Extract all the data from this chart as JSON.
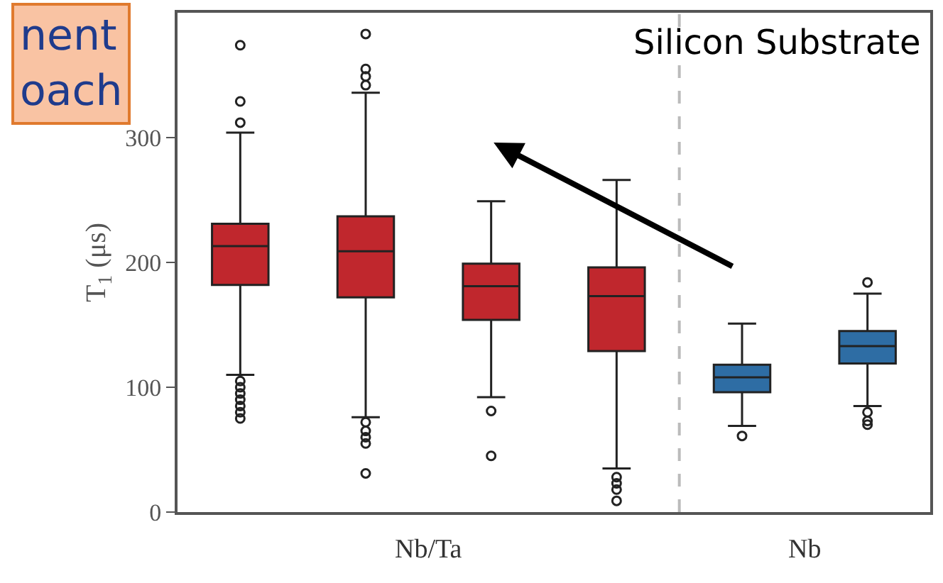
{
  "chart_data": {
    "type": "box",
    "ylabel": "T$_{1}$ (μs)",
    "categories": [
      null,
      null,
      null,
      null,
      null,
      null
    ],
    "ylim": [
      0,
      400
    ],
    "yticks": [
      0,
      100,
      200,
      300
    ],
    "colors": [
      "#c0272d",
      "#c0272d",
      "#c0272d",
      "#c0272d",
      "#2e6da4",
      "#2e6da4"
    ],
    "boxes": [
      {
        "low": 110,
        "q1": 182,
        "median": 213,
        "q3": 231,
        "high": 304,
        "outliers": [
          374,
          329,
          312,
          105,
          100,
          95,
          90,
          85,
          80,
          75
        ]
      },
      {
        "low": 76,
        "q1": 172,
        "median": 209,
        "q3": 237,
        "high": 336,
        "outliers": [
          383,
          355,
          349,
          342,
          72,
          65,
          60,
          55,
          31
        ]
      },
      {
        "low": 92,
        "q1": 154,
        "median": 181,
        "q3": 199,
        "high": 249,
        "outliers": [
          81,
          45
        ]
      },
      {
        "low": 35,
        "q1": 129,
        "median": 173,
        "q3": 196,
        "high": 266,
        "outliers": [
          28,
          23,
          18,
          9
        ]
      },
      {
        "low": 69,
        "q1": 96,
        "median": 108,
        "q3": 118,
        "high": 151,
        "outliers": [
          61
        ]
      },
      {
        "low": 85,
        "q1": 119,
        "median": 133,
        "q3": 145,
        "high": 175,
        "outliers": [
          184,
          80,
          73,
          70
        ]
      }
    ],
    "ref_lines": [
      {
        "axis": "x",
        "color": "#bbbbbb",
        "line_style": "dashed"
      }
    ],
    "annotations": [
      "nent\noach",
      "Silicon Substrate",
      "Nb/Ta",
      "Nb"
    ]
  }
}
